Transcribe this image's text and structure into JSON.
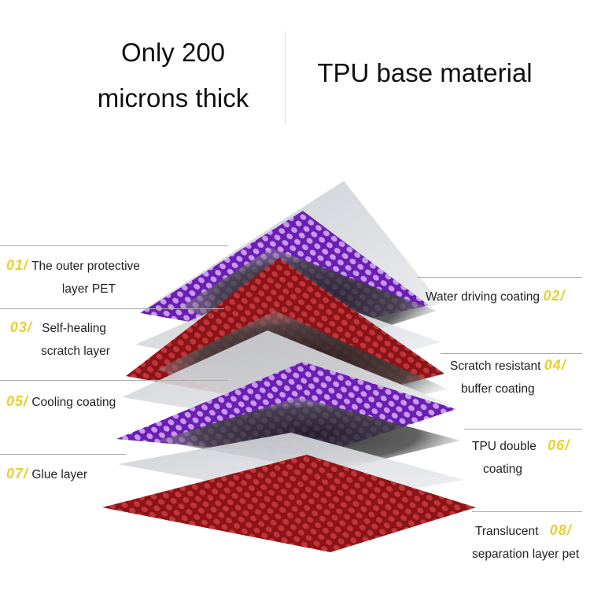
{
  "header": {
    "left_title_line1": "Only 200",
    "left_title_line2": "microns thick",
    "right_title": "TPU base material"
  },
  "layers": [
    {
      "number": "01/",
      "text_line1": "The outer protective",
      "text_line2": "layer PET"
    },
    {
      "number": "02/",
      "text_line1": "Water driving coating",
      "text_line2": ""
    },
    {
      "number": "03/",
      "text_line1": "Self-healing",
      "text_line2": "scratch layer"
    },
    {
      "number": "04/",
      "text_line1": "Scratch resistant",
      "text_line2": "buffer coating"
    },
    {
      "number": "05/",
      "text_line1": "Cooling coating",
      "text_line2": ""
    },
    {
      "number": "06/",
      "text_line1": "TPU double",
      "text_line2": "coating"
    },
    {
      "number": "07/",
      "text_line1": "Glue layer",
      "text_line2": ""
    },
    {
      "number": "08/",
      "text_line1": "Translucent",
      "text_line2": "separation layer pet"
    }
  ],
  "colors": {
    "number_accent": "#e8cf2e",
    "purple_layer": "#8a3ad0",
    "red_layer": "#9e1a1e",
    "grey_layer": "#dcdfe3"
  }
}
